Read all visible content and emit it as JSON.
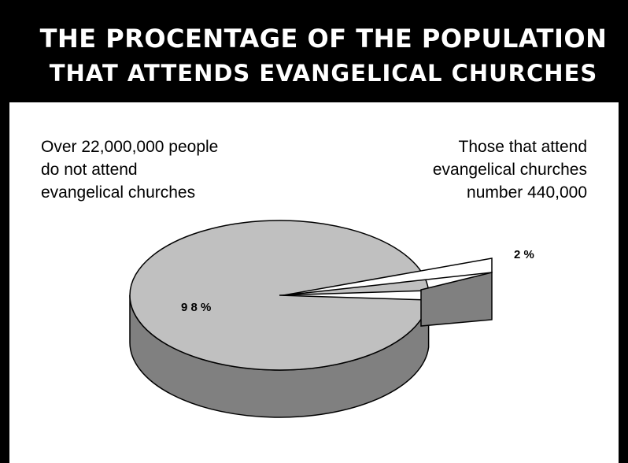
{
  "chart_data": {
    "type": "pie",
    "title": "THE PROCENTAGE OF THE POPULATION",
    "subtitle": "THAT ATTENDS EVANGELICAL CHURCHES",
    "slices": [
      {
        "label": "9 8 %",
        "value": 98,
        "color": "#c0c0c0"
      },
      {
        "label": "2 %",
        "value": 2,
        "color": "#ffffff"
      }
    ],
    "annotations": {
      "left": [
        "Over 22,000,000 people",
        "do not attend",
        "evangelical churches"
      ],
      "right": [
        "Those that attend",
        "evangelical churches",
        "number 440,000"
      ]
    },
    "side_color": "#808080",
    "legend": "none",
    "style": "3d-exploded"
  }
}
